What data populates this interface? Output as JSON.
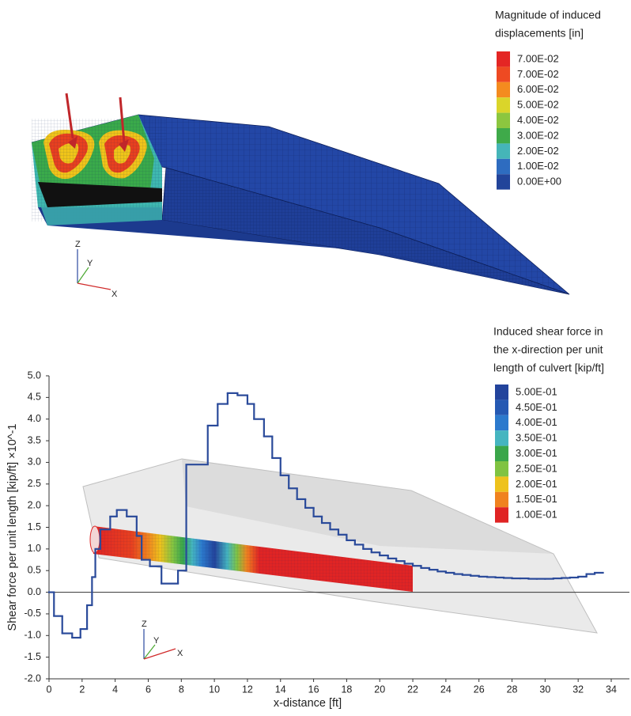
{
  "top_panel": {
    "legend": {
      "title_lines": [
        "Magnitude of induced",
        "displacements [in]"
      ],
      "entries": [
        {
          "label": "7.00E-02",
          "color": "#e42624"
        },
        {
          "label": "7.00E-02",
          "color": "#ee4a22"
        },
        {
          "label": "6.00E-02",
          "color": "#f48b1f"
        },
        {
          "label": "5.00E-02",
          "color": "#dad52a"
        },
        {
          "label": "4.00E-02",
          "color": "#8cc63f"
        },
        {
          "label": "3.00E-02",
          "color": "#3faa4a"
        },
        {
          "label": "2.00E-02",
          "color": "#45b5b8"
        },
        {
          "label": "1.00E-02",
          "color": "#2e6cc0"
        },
        {
          "label": "0.00E+00",
          "color": "#22449a"
        }
      ]
    },
    "axes_triad": {
      "z": "Z",
      "y": "Y",
      "x": "X"
    }
  },
  "chart_data": {
    "type": "step",
    "y_label": "Shear force per unit length [kip/ft] ×10^-1",
    "x_label": "x-distance [ft]",
    "line_color": "#2a4a9a",
    "xlim": [
      0,
      35.1
    ],
    "ylim": [
      -2.0,
      5.0
    ],
    "xticks": [
      0,
      2,
      4,
      6,
      8,
      10,
      12,
      14,
      16,
      18,
      20,
      22,
      24,
      26,
      28,
      30,
      32,
      34
    ],
    "yticks": [
      {
        "value": -2,
        "label": "-2.0"
      },
      {
        "value": -1.5,
        "label": "-1.5"
      },
      {
        "value": -1,
        "label": "-1.0"
      },
      {
        "value": -0.5,
        "label": "-0.5"
      },
      {
        "value": 0,
        "label": "0.0"
      },
      {
        "value": 0.5,
        "label": "0.5"
      },
      {
        "value": 1,
        "label": "1.0"
      },
      {
        "value": 1.5,
        "label": "1.5"
      },
      {
        "value": 2,
        "label": "2.0"
      },
      {
        "value": 2.5,
        "label": "2.5"
      },
      {
        "value": 3,
        "label": "3.0"
      },
      {
        "value": 3.5,
        "label": "3.5"
      },
      {
        "value": 4,
        "label": "4.0"
      },
      {
        "value": 4.5,
        "label": "4.5"
      },
      {
        "value": 5,
        "label": "5.0"
      }
    ],
    "x": [
      0,
      0.3,
      0.8,
      1.4,
      1.9,
      2.3,
      2.6,
      2.8,
      3.1,
      3.7,
      4.1,
      4.7,
      5.3,
      5.6,
      6.1,
      6.8,
      7.8,
      8.3,
      9.6,
      10.2,
      10.8,
      11.4,
      12.0,
      12.4,
      13.0,
      13.5,
      14.0,
      14.5,
      15,
      15.5,
      16,
      16.5,
      17,
      17.5,
      18,
      18.5,
      19,
      19.5,
      20,
      20.5,
      21,
      21.5,
      22,
      22.5,
      23,
      23.5,
      24,
      24.5,
      25,
      25.5,
      26,
      26.5,
      27,
      27.5,
      28,
      28.5,
      29,
      29.5,
      30,
      30.5,
      31,
      31.5,
      32,
      32.5,
      33
    ],
    "values": [
      0,
      -0.55,
      -0.95,
      -1.05,
      -0.85,
      -0.3,
      0.35,
      1.0,
      1.45,
      1.75,
      1.9,
      1.75,
      1.3,
      0.75,
      0.6,
      0.2,
      0.5,
      2.95,
      3.85,
      4.35,
      4.6,
      4.55,
      4.35,
      4.0,
      3.6,
      3.1,
      2.7,
      2.4,
      2.15,
      1.95,
      1.75,
      1.6,
      1.45,
      1.33,
      1.2,
      1.1,
      1.0,
      0.92,
      0.85,
      0.78,
      0.72,
      0.66,
      0.61,
      0.56,
      0.52,
      0.48,
      0.45,
      0.42,
      0.4,
      0.38,
      0.36,
      0.35,
      0.34,
      0.33,
      0.32,
      0.32,
      0.31,
      0.31,
      0.31,
      0.32,
      0.33,
      0.34,
      0.36,
      0.42,
      0.45
    ],
    "legend": {
      "title_lines": [
        "Induced shear force in",
        "the x-direction per unit",
        "length of culvert [kip/ft]"
      ],
      "entries": [
        {
          "label": "5.00E-01",
          "color": "#23449c"
        },
        {
          "label": "4.50E-01",
          "color": "#2559b3"
        },
        {
          "label": "4.00E-01",
          "color": "#2c7acd"
        },
        {
          "label": "3.50E-01",
          "color": "#45b5c0"
        },
        {
          "label": "3.00E-01",
          "color": "#3aa64a"
        },
        {
          "label": "2.50E-01",
          "color": "#80c342"
        },
        {
          "label": "2.00E-01",
          "color": "#eec21c"
        },
        {
          "label": "1.50E-01",
          "color": "#f0821f"
        },
        {
          "label": "1.00E-01",
          "color": "#e02424"
        }
      ]
    },
    "bottom_triad": {
      "z": "Z",
      "y": "Y",
      "x": "X"
    }
  }
}
